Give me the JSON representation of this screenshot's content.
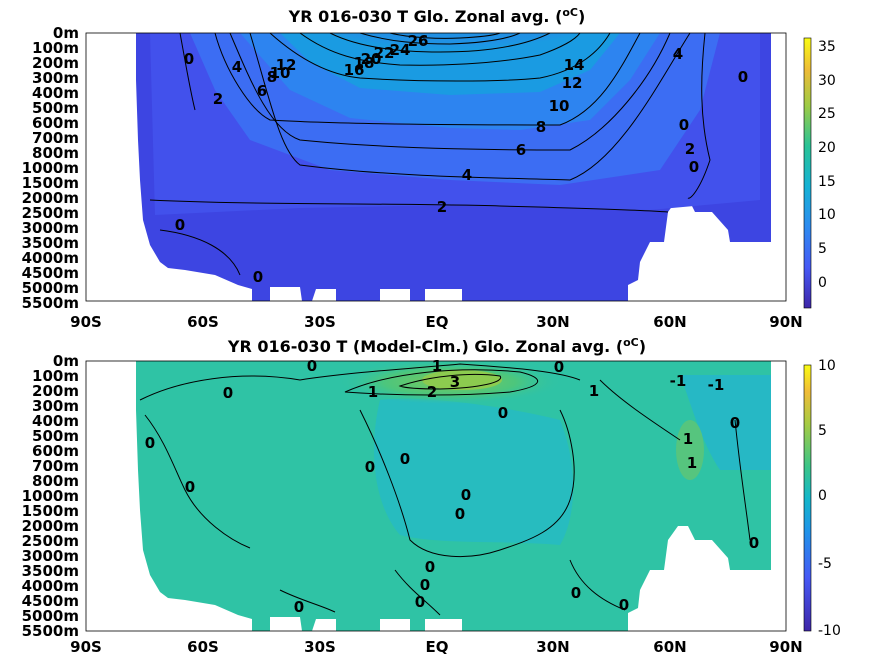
{
  "chart_data": [
    {
      "type": "heatmap",
      "title": "YR 016-030 T Glo. Zonal avg. (",
      "title_unit": "oC",
      "title_close": ")",
      "x_ticks": [
        "90S",
        "60S",
        "30S",
        "EQ",
        "30N",
        "60N",
        "90N"
      ],
      "y_ticks": [
        "0m",
        "100m",
        "200m",
        "300m",
        "400m",
        "500m",
        "600m",
        "700m",
        "800m",
        "1000m",
        "1500m",
        "2000m",
        "2500m",
        "3000m",
        "3500m",
        "4000m",
        "4500m",
        "5000m",
        "5500m"
      ],
      "colorbar_ticks": [
        "35",
        "30",
        "25",
        "20",
        "15",
        "10",
        "5",
        "0"
      ],
      "colorbar_range": [
        -3,
        36
      ],
      "contour_labels": [
        "26",
        "24",
        "22",
        "20",
        "18",
        "16",
        "14",
        "12",
        "10",
        "8",
        "6",
        "4",
        "2",
        "0",
        "0",
        "0",
        "4",
        "2",
        "0",
        "4",
        "6",
        "8",
        "10",
        "12",
        "2",
        "0",
        "0"
      ]
    },
    {
      "type": "heatmap",
      "title": "YR 016-030 T (Model-Clm.) Glo. Zonal avg. (",
      "title_unit": "oC",
      "title_close": ")",
      "x_ticks": [
        "90S",
        "60S",
        "30S",
        "EQ",
        "30N",
        "60N",
        "90N"
      ],
      "y_ticks": [
        "0m",
        "100m",
        "200m",
        "300m",
        "400m",
        "500m",
        "600m",
        "700m",
        "800m",
        "1000m",
        "1500m",
        "2000m",
        "2500m",
        "3000m",
        "3500m",
        "4000m",
        "4500m",
        "5000m",
        "5500m"
      ],
      "colorbar_ticks": [
        "10",
        "5",
        "0",
        "-5",
        "-10"
      ],
      "colorbar_range": [
        -10,
        10
      ],
      "contour_labels": [
        "0",
        "1",
        "3",
        "2",
        "1",
        "0",
        "0",
        "0",
        "1",
        "-1",
        "-1",
        "0",
        "1",
        "1",
        "0",
        "0",
        "0",
        "0",
        "0",
        "0",
        "0",
        "0",
        "0",
        "0",
        "0",
        "0",
        "0"
      ]
    }
  ]
}
